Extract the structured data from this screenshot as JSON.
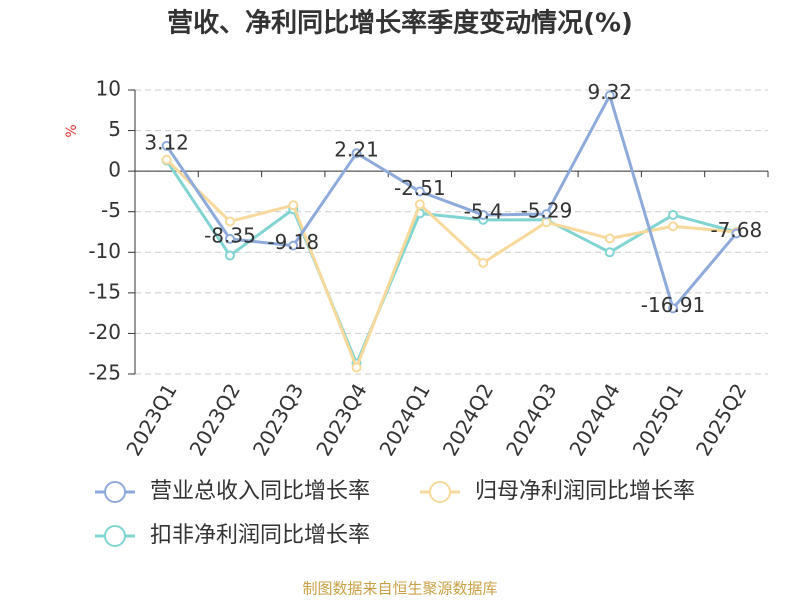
{
  "chart_data": {
    "type": "line",
    "title": "营收、净利同比增长率季度变动情况(%)",
    "y_label": "%",
    "footer": "制图数据来自恒生聚源数据库",
    "categories": [
      "2023Q1",
      "2023Q2",
      "2023Q3",
      "2023Q4",
      "2024Q1",
      "2024Q2",
      "2024Q3",
      "2024Q4",
      "2025Q1",
      "2025Q2"
    ],
    "series": [
      {
        "name": "营业总收入同比增长率",
        "color": "#8eaadb",
        "values": [
          3.12,
          -8.35,
          -9.18,
          2.21,
          -2.51,
          -5.4,
          -5.29,
          9.32,
          -16.91,
          -7.68
        ],
        "show_labels": true
      },
      {
        "name": "归母净利润同比增长率",
        "color": "#f8d99c",
        "values": [
          1.4,
          -6.2,
          -4.2,
          -24.2,
          -4.1,
          -11.3,
          -6.3,
          -8.3,
          -6.8,
          -7.5
        ]
      },
      {
        "name": "扣非净利润同比增长率",
        "color": "#80d4d2",
        "values": [
          1.3,
          -10.4,
          -4.7,
          -23.7,
          -5.2,
          -6.0,
          -6.0,
          -10.0,
          -5.4,
          -7.5
        ]
      }
    ],
    "ylim": [
      -25,
      10
    ],
    "yticks": [
      -25,
      -20,
      -15,
      -10,
      -5,
      0,
      5,
      10
    ],
    "grid": true
  }
}
